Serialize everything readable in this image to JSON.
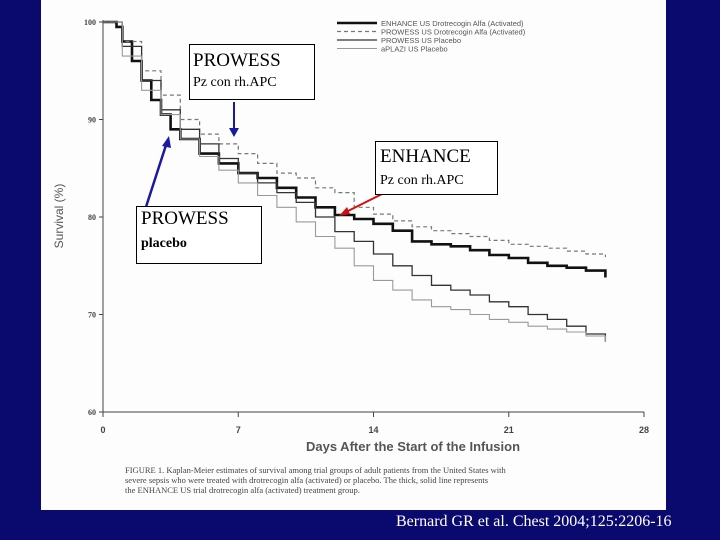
{
  "chart_data": {
    "type": "line",
    "xlabel": "Days After the Start of the Infusion",
    "ylabel": "Survival (%)",
    "xlim": [
      0,
      28
    ],
    "ylim": [
      60,
      100
    ],
    "xticks": [
      "0",
      "7",
      "14",
      "21",
      "28"
    ],
    "yticks": [
      "100",
      "90",
      "80",
      "70",
      "60"
    ],
    "grid": false,
    "legend_position": "top-right",
    "series": [
      {
        "name": "ENHANCE US Drotrecogin Alfa (Activated)",
        "style": "thick-solid",
        "color": "#111111",
        "x": [
          0,
          0.7,
          1,
          1.5,
          2,
          2.5,
          3,
          3.5,
          4,
          5,
          6,
          7,
          8,
          9,
          10,
          11,
          12,
          13,
          14,
          15,
          16,
          17,
          18,
          19,
          20,
          21,
          22,
          23,
          24,
          25,
          26
        ],
        "y": [
          100,
          99.5,
          98,
          96,
          94,
          92,
          90.5,
          89,
          88,
          86.5,
          85.5,
          84.5,
          84,
          83,
          82,
          81,
          80.2,
          79.8,
          79.3,
          78.6,
          77.5,
          77.2,
          77,
          76.6,
          76.1,
          75.8,
          75.3,
          75,
          74.8,
          74.5,
          73.8
        ]
      },
      {
        "name": "PROWESS US Drotrecogin Alfa (Activated)",
        "style": "dashed",
        "color": "#777777",
        "x": [
          0,
          1,
          2,
          3,
          4,
          5,
          6,
          7,
          8,
          9,
          10,
          11,
          12,
          13,
          14,
          15,
          16,
          17,
          18,
          19,
          20,
          21,
          22,
          23,
          24,
          25,
          26
        ],
        "y": [
          100,
          98,
          95,
          92.5,
          90,
          88.5,
          87.5,
          86.5,
          85.5,
          84.5,
          84,
          83,
          82.5,
          81,
          80.3,
          79.6,
          79,
          78.6,
          78.3,
          78,
          77.6,
          77.2,
          77,
          76.8,
          76.5,
          76.2,
          75.9
        ]
      },
      {
        "name": "PROWESS US Placebo",
        "style": "solid",
        "color": "#333333",
        "x": [
          0,
          1,
          2,
          3,
          4,
          5,
          6,
          7,
          8,
          9,
          10,
          11,
          12,
          13,
          14,
          15,
          16,
          17,
          18,
          19,
          20,
          21,
          22,
          23,
          24,
          25,
          26
        ],
        "y": [
          100,
          97.5,
          94,
          91,
          89,
          87.5,
          86,
          84.5,
          83.5,
          82.5,
          81.5,
          80,
          78.5,
          77.5,
          76.2,
          75,
          74,
          73,
          72.5,
          72,
          71.3,
          70.8,
          70,
          69.5,
          68.8,
          68,
          67.2
        ]
      },
      {
        "name": "aPLAZI US Placebo",
        "style": "thin-solid",
        "color": "#999999",
        "x": [
          0,
          1,
          2,
          3,
          4,
          5,
          6,
          7,
          8,
          9,
          10,
          11,
          12,
          13,
          14,
          15,
          16,
          17,
          18,
          19,
          20,
          21,
          22,
          23,
          24,
          25,
          26
        ],
        "y": [
          100,
          96.5,
          93,
          90.5,
          88,
          86.2,
          84.8,
          83.5,
          82.2,
          81,
          79.5,
          78,
          76.8,
          75,
          73.5,
          72.5,
          71.5,
          70.8,
          70.5,
          70,
          69.5,
          69.2,
          68.8,
          68.5,
          68.2,
          67.8,
          67.2
        ]
      }
    ],
    "caption": "FIGURE 1. Kaplan-Meier estimates of survival among trial groups of adult patients from the United States with severe sepsis who were treated with drotrecogin alfa (activated) or placebo. The thick, solid line represents the ENHANCE US trial drotrecogin alfa (activated) treatment group."
  },
  "callouts": [
    {
      "line1": "PROWESS",
      "line2": "Pz con rh.APC"
    },
    {
      "line1": "ENHANCE",
      "line2": "Pz con rh.APC"
    },
    {
      "line1": "PROWESS",
      "line2": "placebo"
    }
  ],
  "arrow_colors": {
    "prowess_drug": "#1a1aa0",
    "enhance": "#d01010",
    "prowess_placebo": "#1a1aa0"
  },
  "citation": "Bernard GR et al. Chest 2004;125:2206-16"
}
